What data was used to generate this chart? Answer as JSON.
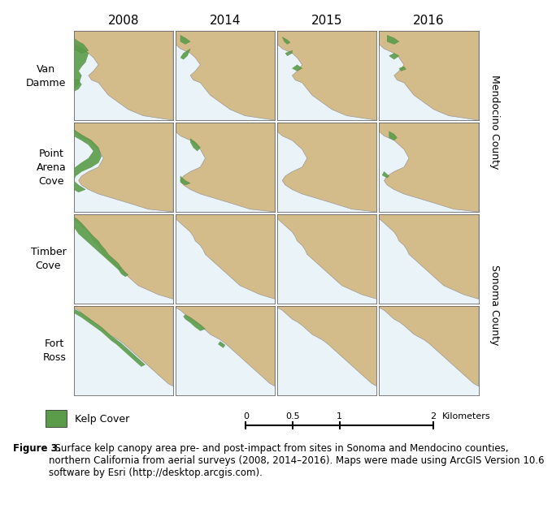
{
  "years": [
    "2008",
    "2014",
    "2015",
    "2016"
  ],
  "locations": [
    "Van\nDamme",
    "Point\nArena\nCove",
    "Timber\nCove",
    "Fort\nRoss"
  ],
  "county_labels": [
    "Mendocino County",
    "Sonoma County"
  ],
  "land_color": "#D4BC8A",
  "water_color": "#EAF3F8",
  "kelp_color": "#5B9C4A",
  "border_color": "#777777",
  "background_color": "#ffffff",
  "caption_bold": "Figure 3.",
  "caption_rest": "  Surface kelp canopy area pre- and post-impact from sites in Sonoma and Mendocino counties,\nnorthern California from aerial surveys (2008, 2014–2016). Maps were made using ArcGIS Version 10.6\nsoftware by Esri (http://desktop.arcgis.com).",
  "legend_label": "Kelp Cover",
  "kelp_show": [
    [
      true,
      true,
      true,
      true
    ],
    [
      true,
      true,
      false,
      true
    ],
    [
      true,
      false,
      false,
      false
    ],
    [
      true,
      true,
      false,
      false
    ]
  ]
}
